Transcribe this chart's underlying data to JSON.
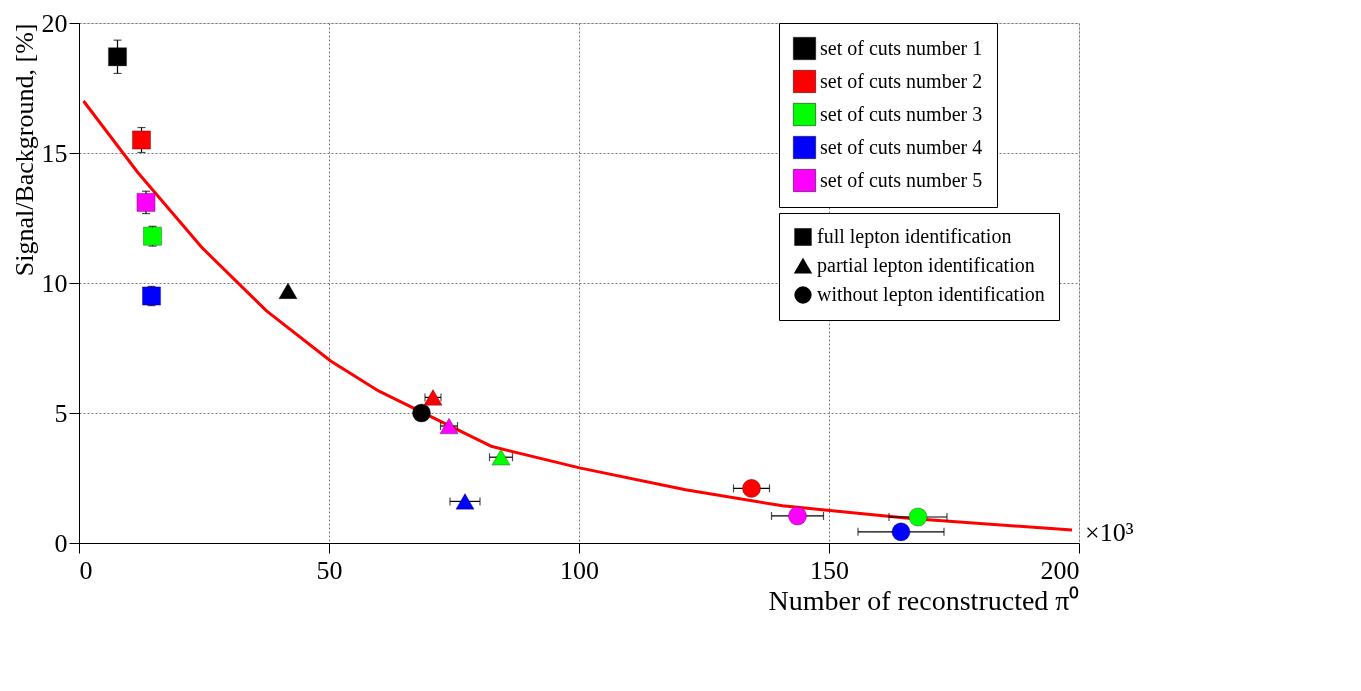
{
  "chart_data": {
    "type": "scatter",
    "xlabel": "Number of reconstructed π⁰",
    "ylabel": "Signal/Background, [%]",
    "xlim": [
      0,
      200
    ],
    "xticks": [
      0,
      50,
      100,
      150,
      200
    ],
    "ylim": [
      0,
      20
    ],
    "yticks": [
      0,
      5,
      10,
      15,
      20
    ],
    "grid": true,
    "legend": "top right",
    "annotations": [
      "×10³"
    ],
    "series": [
      {
        "name": "set of cuts number 1",
        "color": "#000000",
        "marker": [
          "square",
          "triangle",
          "circle"
        ],
        "x": [
          7.7,
          41.8,
          68.5
        ],
        "values": [
          18.7,
          9.7,
          5.0
        ],
        "errors": [
          0.64,
          null,
          null
        ],
        "xerrors": [
          null,
          null,
          null
        ]
      },
      {
        "name": "set of cuts number 2",
        "color": "#ff0000",
        "marker": [
          "square",
          "triangle",
          "circle"
        ],
        "x": [
          12.5,
          70.8,
          134.5
        ],
        "values": [
          15.5,
          5.6,
          2.1
        ],
        "errors": [
          0.48,
          null,
          null
        ],
        "xerrors": [
          null,
          1.6,
          3.6
        ]
      },
      {
        "name": "set of cuts number 3",
        "color": "#00ff00",
        "marker": [
          "square",
          "triangle",
          "circle"
        ],
        "x": [
          14.7,
          84.4,
          167.8
        ],
        "values": [
          11.8,
          3.3,
          1.0
        ],
        "errors": [
          0.38,
          null,
          null
        ],
        "xerrors": [
          null,
          2.3,
          5.8
        ]
      },
      {
        "name": "set of cuts number 4",
        "color": "#0000ff",
        "marker": [
          "square",
          "triangle",
          "circle"
        ],
        "x": [
          14.5,
          77.2,
          164.4
        ],
        "values": [
          9.5,
          1.6,
          0.43
        ],
        "errors": [
          0.37,
          null,
          null
        ],
        "xerrors": [
          null,
          3.0,
          8.6
        ]
      },
      {
        "name": "set of cuts number 5",
        "color": "#ff00ff",
        "marker": [
          "square",
          "triangle",
          "circle"
        ],
        "x": [
          13.4,
          74.0,
          143.7
        ],
        "values": [
          13.1,
          4.5,
          1.04
        ],
        "errors": [
          0.43,
          null,
          null
        ],
        "xerrors": [
          null,
          1.7,
          5.2
        ]
      },
      {
        "name": "full lepton identification",
        "color": "#000000",
        "marker": "square"
      },
      {
        "name": "partial lepton identification",
        "color": "#000000",
        "marker": "triangle"
      },
      {
        "name": "without lepton identification",
        "color": "#000000",
        "marker": "circle"
      },
      {
        "type": "line",
        "color": "#ff0000",
        "x": [
          0.9,
          11.8,
          24.7,
          37.5,
          50.4,
          60.0,
          82.6,
          100.1,
          121.3,
          140.7,
          166.4,
          198.6
        ],
        "values": [
          17.0,
          14.24,
          11.34,
          8.93,
          6.99,
          5.84,
          3.71,
          2.89,
          2.05,
          1.43,
          0.94,
          0.5
        ]
      }
    ]
  }
}
